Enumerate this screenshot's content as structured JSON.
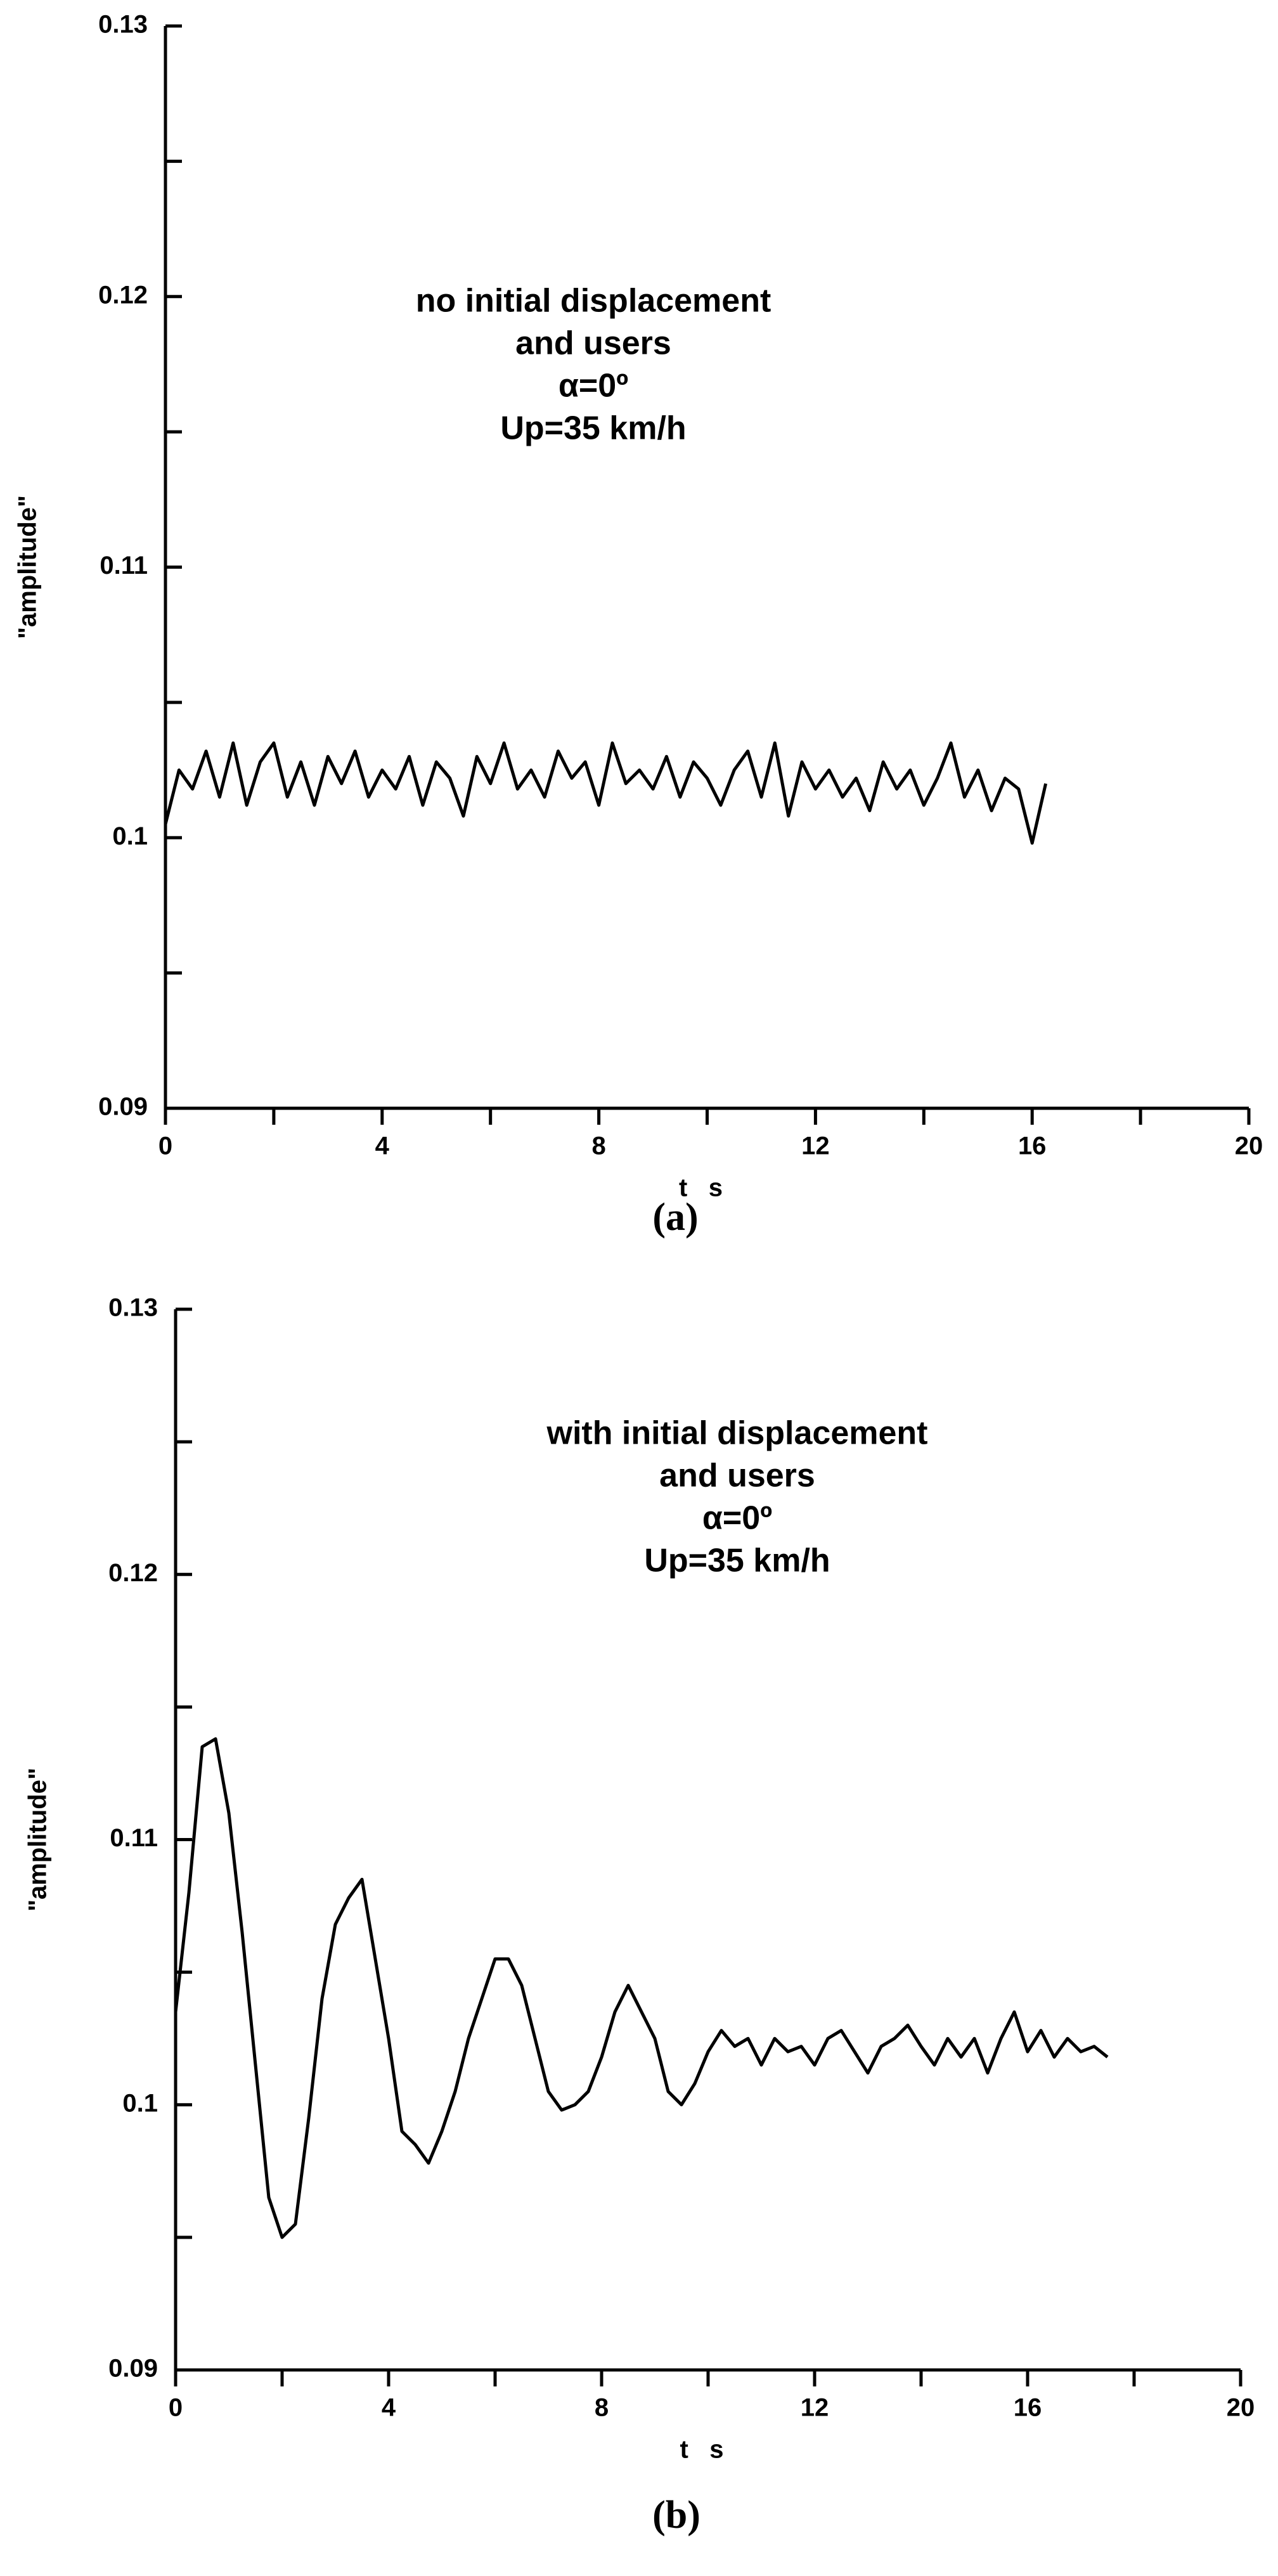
{
  "chart_data": [
    {
      "type": "line",
      "caption": "(a)",
      "xlabel": "t   s",
      "ylabel": "\"amplitude\"",
      "annotation": [
        "no initial displacement",
        "and users",
        "α=0º",
        "Up=35 km/h"
      ],
      "color": "#000000",
      "xlim": [
        0,
        20
      ],
      "xticks": [
        0,
        4,
        8,
        12,
        16,
        20
      ],
      "xminor": [
        2,
        6,
        10,
        14,
        18
      ],
      "ylim": [
        0.09,
        0.13
      ],
      "yticks": [
        0.09,
        0.1,
        0.11,
        0.12,
        0.13
      ],
      "yminor": [
        0.095,
        0.105,
        0.115,
        0.125
      ],
      "x": [
        0,
        0.25,
        0.5,
        0.75,
        1,
        1.25,
        1.5,
        1.75,
        2,
        2.25,
        2.5,
        2.75,
        3,
        3.25,
        3.5,
        3.75,
        4,
        4.25,
        4.5,
        4.75,
        5,
        5.25,
        5.5,
        5.75,
        6,
        6.25,
        6.5,
        6.75,
        7,
        7.25,
        7.5,
        7.75,
        8,
        8.25,
        8.5,
        8.75,
        9,
        9.25,
        9.5,
        9.75,
        10,
        10.25,
        10.5,
        10.75,
        11,
        11.25,
        11.5,
        11.75,
        12,
        12.25,
        12.5,
        12.75,
        13,
        13.25,
        13.5,
        13.75,
        14,
        14.25,
        14.5,
        14.75,
        15,
        15.25,
        15.5,
        15.75,
        16,
        16.25
      ],
      "values": [
        0.1005,
        0.1025,
        0.1018,
        0.1032,
        0.1015,
        0.1035,
        0.1012,
        0.1028,
        0.1035,
        0.1015,
        0.1028,
        0.1012,
        0.103,
        0.102,
        0.1032,
        0.1015,
        0.1025,
        0.1018,
        0.103,
        0.1012,
        0.1028,
        0.1022,
        0.1008,
        0.103,
        0.102,
        0.1035,
        0.1018,
        0.1025,
        0.1015,
        0.1032,
        0.1022,
        0.1028,
        0.1012,
        0.1035,
        0.102,
        0.1025,
        0.1018,
        0.103,
        0.1015,
        0.1028,
        0.1022,
        0.1012,
        0.1025,
        0.1032,
        0.1015,
        0.1035,
        0.1008,
        0.1028,
        0.1018,
        0.1025,
        0.1015,
        0.1022,
        0.101,
        0.1028,
        0.1018,
        0.1025,
        0.1012,
        0.1022,
        0.1035,
        0.1015,
        0.1025,
        0.101,
        0.1022,
        0.1018,
        0.0998,
        0.102
      ]
    },
    {
      "type": "line",
      "caption": "(b)",
      "xlabel": "t   s",
      "ylabel": "\"amplitude\"",
      "annotation": [
        "with initial displacement",
        "and users",
        "α=0º",
        "Up=35 km/h"
      ],
      "color": "#000000",
      "xlim": [
        0,
        20
      ],
      "xticks": [
        0,
        4,
        8,
        12,
        16,
        20
      ],
      "xminor": [
        2,
        6,
        10,
        14,
        18
      ],
      "ylim": [
        0.09,
        0.13
      ],
      "yticks": [
        0.09,
        0.1,
        0.11,
        0.12,
        0.13
      ],
      "yminor": [
        0.095,
        0.105,
        0.115,
        0.125
      ],
      "x": [
        0,
        0.25,
        0.5,
        0.75,
        1,
        1.25,
        1.5,
        1.75,
        2,
        2.25,
        2.5,
        2.75,
        3,
        3.25,
        3.5,
        3.75,
        4,
        4.25,
        4.5,
        4.75,
        5,
        5.25,
        5.5,
        5.75,
        6,
        6.25,
        6.5,
        6.75,
        7,
        7.25,
        7.5,
        7.75,
        8,
        8.25,
        8.5,
        8.75,
        9,
        9.25,
        9.5,
        9.75,
        10,
        10.25,
        10.5,
        10.75,
        11,
        11.25,
        11.5,
        11.75,
        12,
        12.25,
        12.5,
        12.75,
        13,
        13.25,
        13.5,
        13.75,
        14,
        14.25,
        14.5,
        14.75,
        15,
        15.25,
        15.5,
        15.75,
        16,
        16.25,
        16.5,
        16.75,
        17,
        17.25,
        17.5
      ],
      "values": [
        0.1035,
        0.108,
        0.1135,
        0.1138,
        0.111,
        0.1065,
        0.1015,
        0.0965,
        0.095,
        0.0955,
        0.0995,
        0.104,
        0.1068,
        0.1078,
        0.1085,
        0.1055,
        0.1025,
        0.099,
        0.0985,
        0.0978,
        0.099,
        0.1005,
        0.1025,
        0.104,
        0.1055,
        0.1055,
        0.1045,
        0.1025,
        0.1005,
        0.0998,
        0.1,
        0.1005,
        0.1018,
        0.1035,
        0.1045,
        0.1035,
        0.1025,
        0.1005,
        0.1,
        0.1008,
        0.102,
        0.1028,
        0.1022,
        0.1025,
        0.1015,
        0.1025,
        0.102,
        0.1022,
        0.1015,
        0.1025,
        0.1028,
        0.102,
        0.1012,
        0.1022,
        0.1025,
        0.103,
        0.1022,
        0.1015,
        0.1025,
        0.1018,
        0.1025,
        0.1012,
        0.1025,
        0.1035,
        0.102,
        0.1028,
        0.1018,
        0.1025,
        0.102,
        0.1022,
        0.1018
      ]
    }
  ]
}
